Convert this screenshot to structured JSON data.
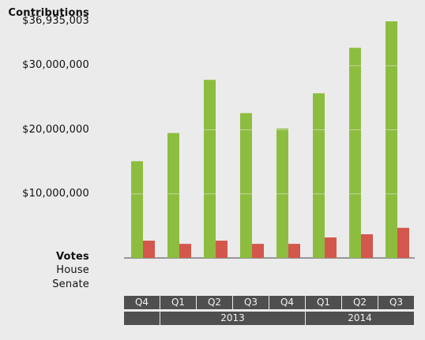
{
  "labels": {
    "contributions": "Contributions",
    "votes": "Votes",
    "house": "House",
    "senate": "Senate"
  },
  "colors": {
    "contributions": "#8dbd3f",
    "secondary": "#d3574c",
    "axis_bar": "#4f4f4f",
    "background": "#ebebeb"
  },
  "chart_data": {
    "type": "bar",
    "title": "Contributions",
    "categories": [
      "Q4",
      "Q1",
      "Q2",
      "Q3",
      "Q4",
      "Q1",
      "Q2",
      "Q3"
    ],
    "groups": [
      {
        "label": "",
        "quarters": [
          "Q4"
        ]
      },
      {
        "label": "2013",
        "quarters": [
          "Q1",
          "Q2",
          "Q3",
          "Q4"
        ]
      },
      {
        "label": "2014",
        "quarters": [
          "Q1",
          "Q2",
          "Q3"
        ]
      }
    ],
    "series": [
      {
        "values": [
          15100000,
          19500000,
          27800000,
          22600000,
          20200000,
          25700000,
          32800000,
          36935003
        ]
      },
      {
        "values": [
          2700000,
          2200000,
          2700000,
          2200000,
          2200000,
          3200000,
          3700000,
          4700000
        ]
      }
    ],
    "ylim": [
      0,
      36935003
    ],
    "yticks": [
      {
        "value": 10000000,
        "label": "$10,000,000"
      },
      {
        "value": 20000000,
        "label": "$20,000,000"
      },
      {
        "value": 30000000,
        "label": "$30,000,000"
      },
      {
        "value": 36935003,
        "label": "$36,935,003"
      }
    ],
    "grid": false
  }
}
